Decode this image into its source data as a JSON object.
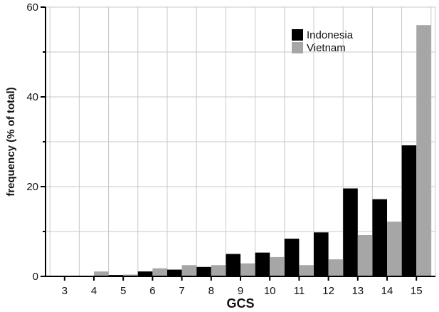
{
  "chart_data": {
    "type": "bar",
    "title": "",
    "xlabel": "GCS",
    "ylabel": "frequency (% of total)",
    "categories": [
      "3",
      "4",
      "5",
      "6",
      "7",
      "8",
      "9",
      "10",
      "11",
      "12",
      "13",
      "14",
      "15"
    ],
    "series": [
      {
        "name": "Indonesia",
        "color": "#000000",
        "values": [
          0.1,
          0.1,
          0.3,
          1.1,
          1.5,
          2.1,
          5.0,
          5.3,
          8.4,
          9.8,
          19.6,
          17.2,
          29.2
        ]
      },
      {
        "name": "Vietnam",
        "color": "#a6a6a6",
        "values": [
          0.1,
          1.1,
          0.4,
          1.8,
          2.5,
          2.5,
          2.9,
          4.3,
          2.5,
          3.8,
          9.2,
          12.2,
          56.0
        ]
      }
    ],
    "ylim": [
      0,
      60
    ],
    "yticks": [
      "0",
      "20",
      "40",
      "60"
    ],
    "grid": true,
    "legend_position": "top-right"
  }
}
